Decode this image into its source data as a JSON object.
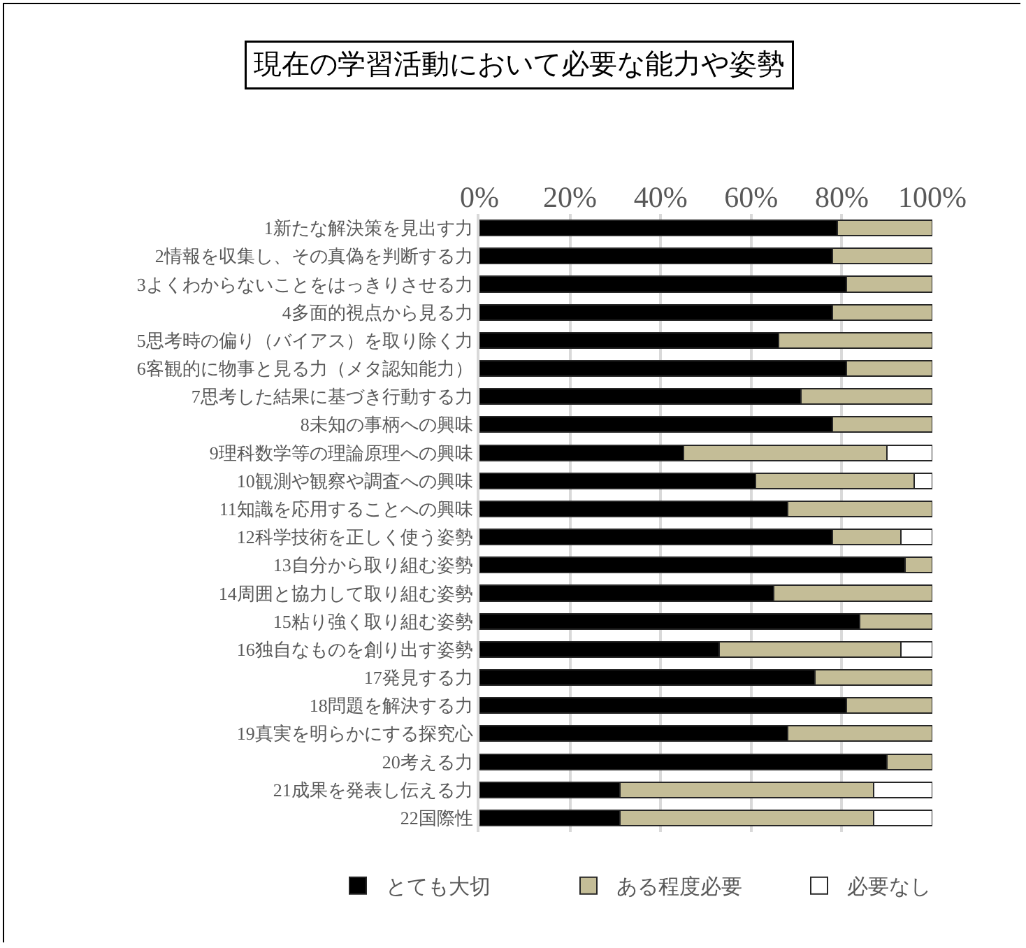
{
  "chart_data": {
    "type": "bar",
    "orientation": "horizontal",
    "stacked": true,
    "title": "現在の学習活動において必要な能力や姿勢",
    "categories": [
      "1新たな解決策を見出す力",
      "2情報を収集し、その真偽を判断する力",
      "3よくわからないことをはっきりさせる力",
      "4多面的視点から見る力",
      "5思考時の偏り（バイアス）を取り除く力",
      "6客観的に物事と見る力（メタ認知能力）",
      "7思考した結果に基づき行動する力",
      "8未知の事柄への興味",
      "9理科数学等の理論原理への興味",
      "10観測や観察や調査への興味",
      "11知識を応用することへの興味",
      "12科学技術を正しく使う姿勢",
      "13自分から取り組む姿勢",
      "14周囲と協力して取り組む姿勢",
      "15粘り強く取り組む姿勢",
      "16独自なものを創り出す姿勢",
      "17発見する力",
      "18問題を解決する力",
      "19真実を明らかにする探究心",
      "20考える力",
      "21成果を発表し伝える力",
      "22国際性"
    ],
    "series": [
      {
        "name": "とても大切",
        "color": "#000000",
        "values": [
          79,
          78,
          81,
          78,
          66,
          81,
          71,
          78,
          45,
          61,
          68,
          78,
          94,
          65,
          84,
          53,
          74,
          81,
          68,
          90,
          31,
          31
        ]
      },
      {
        "name": "ある程度必要",
        "color": "#c4bd97",
        "values": [
          21,
          22,
          19,
          22,
          34,
          19,
          29,
          22,
          45,
          35,
          32,
          15,
          6,
          35,
          16,
          40,
          26,
          19,
          32,
          10,
          56,
          56
        ]
      },
      {
        "name": "必要なし",
        "color": "#ffffff",
        "values": [
          null,
          null,
          null,
          null,
          null,
          null,
          null,
          null,
          10,
          4,
          null,
          7,
          null,
          null,
          null,
          7,
          null,
          null,
          null,
          null,
          13,
          13
        ]
      }
    ],
    "xlim": [
      0,
      100
    ],
    "xticks": [
      {
        "value": 0,
        "label": "0%"
      },
      {
        "value": 20,
        "label": "20%"
      },
      {
        "value": 40,
        "label": "40%"
      },
      {
        "value": 60,
        "label": "60%"
      },
      {
        "value": 80,
        "label": "80%"
      },
      {
        "value": 100,
        "label": "100%"
      }
    ],
    "grid": "x",
    "legend": "bottom"
  }
}
